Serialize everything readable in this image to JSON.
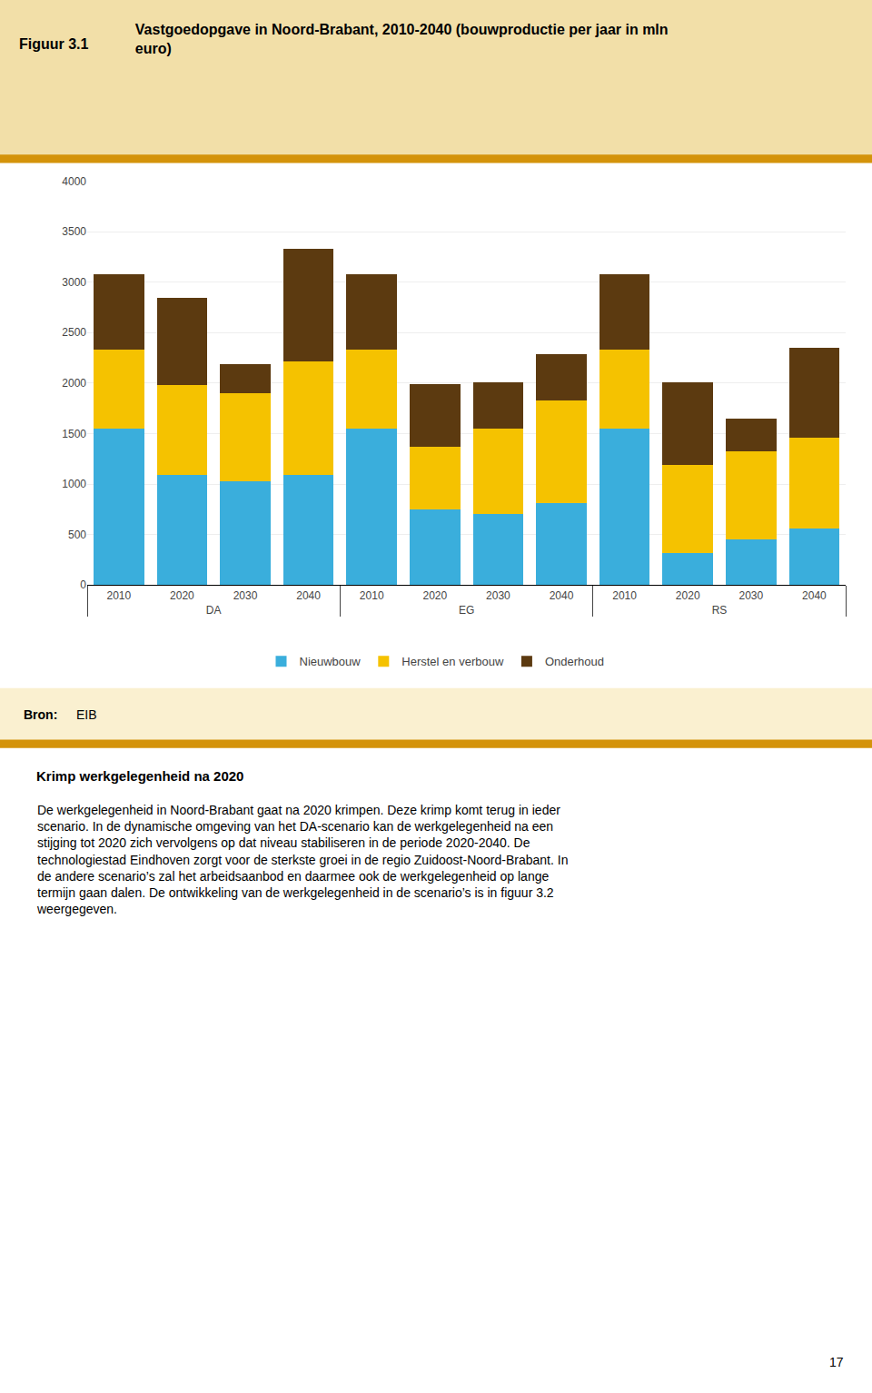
{
  "chart_data": {
    "type": "bar",
    "stacked": true,
    "title": "Vastgoedopgave in Noord-Brabant, 2010-2040 (bouwproductie per jaar in mln\neuro)",
    "categories": [
      "2010",
      "2020",
      "2030",
      "2040",
      "2010",
      "2020",
      "2030",
      "2040",
      "2010",
      "2020",
      "2030",
      "2040"
    ],
    "groups": [
      "DA",
      "DA",
      "DA",
      "DA",
      "EG",
      "EG",
      "EG",
      "EG",
      "RS",
      "RS",
      "RS",
      "RS"
    ],
    "series": [
      {
        "name": "Nieuwbouw",
        "color": "#3AAEDC",
        "values": [
          1550,
          1090,
          1030,
          1090,
          1550,
          750,
          700,
          810,
          1550,
          315,
          450,
          560
        ]
      },
      {
        "name": "Herstel en verbouw",
        "color": "#F5C200",
        "values": [
          780,
          890,
          870,
          1120,
          780,
          620,
          850,
          1020,
          780,
          870,
          870,
          900
        ]
      },
      {
        "name": "Onderhoud",
        "color": "#5C3A10",
        "values": [
          750,
          860,
          290,
          1120,
          750,
          620,
          460,
          460,
          750,
          820,
          330,
          890
        ]
      }
    ],
    "ylim": [
      0,
      4000
    ],
    "yticks": [
      0,
      500,
      1000,
      1500,
      2000,
      2500,
      3000,
      3500,
      4000
    ],
    "grid": true,
    "legend": "bottom",
    "annotations": [
      "Figuur 3.1",
      "Bron:",
      "EIB",
      "Krimp werkgelegenheid na 2020",
      "De werkgelegenheid in Noord-Brabant gaat na 2020 krimpen. Deze krimp komt terug in ieder\nscenario. In de dynamische omgeving van het DA-scenario kan de werkgelegenheid na een\nstijging tot 2020 zich vervolgens op dat niveau stabiliseren in de periode 2020-2040. De\ntechnologiestad Eindhoven zorgt voor de sterkste groei in de regio Zuidoost-Noord-Brabant. In\nde andere scenario’s zal het arbeidsaanbod en daarmee ook de werkgelegenheid op lange\ntermijn gaan dalen. De ontwikkeling van de werkgelegenheid in de scenario’s is in figuur 3.2\nweergegeven.",
      "17"
    ]
  }
}
